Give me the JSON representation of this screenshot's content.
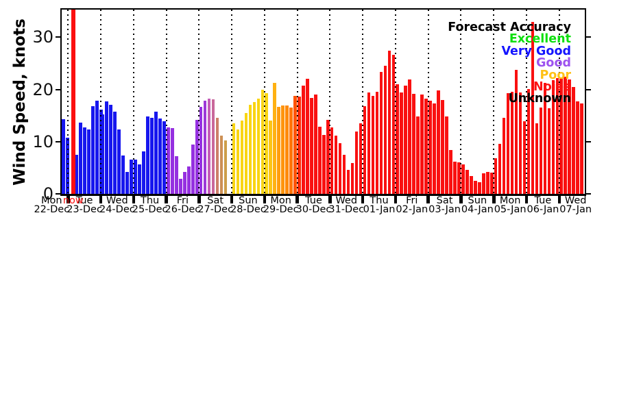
{
  "y_axis": {
    "label": "Wind Speed, knots",
    "tick_labels": [
      "0",
      "10",
      "20",
      "30"
    ],
    "tick_values": [
      0,
      10,
      20,
      30
    ],
    "ylim": [
      0,
      35.3
    ]
  },
  "now_marker": {
    "label": "now",
    "color": "#fb1010",
    "x": 14,
    "width": 5.6
  },
  "legend": {
    "title": "Forecast Accuracy",
    "title_color": "#000000",
    "items": [
      {
        "label": "Excellent",
        "color": "#0edf0e"
      },
      {
        "label": "Very Good",
        "color": "#1414ff"
      },
      {
        "label": "Good",
        "color": "#9d53ef"
      },
      {
        "label": "Poor",
        "color": "#ffc115"
      },
      {
        "label": "Noise",
        "color": "#fb1212"
      },
      {
        "label": "Unknown",
        "color": "#000000"
      }
    ]
  },
  "chart_data": {
    "type": "bar",
    "title": "",
    "ylabel": "Wind Speed, knots",
    "ylim": [
      0,
      35.3
    ],
    "grid": "vertical-dotted-at-midnight",
    "legend_position": "upper-right",
    "days": [
      {
        "name": "Mon",
        "date": "22-Dec",
        "dx": 2.5,
        "colors": "#1717ee",
        "values": [
          null,
          null,
          null,
          null,
          null,
          null,
          14.3,
          10.8
        ]
      },
      {
        "name": "Tue",
        "date": "23-Dec",
        "dx": 3.5,
        "colors": "#1717ee",
        "values": [
          null,
          7.5,
          13.6,
          12.7,
          12.3,
          16.8,
          17.8,
          16.2
        ]
      },
      {
        "name": "Wed",
        "date": "24-Dec",
        "colors": "#1717ee",
        "values": [
          15.2,
          17.7,
          17.0,
          15.8,
          12.3,
          7.4,
          4.2,
          6.6
        ]
      },
      {
        "name": "Thu",
        "date": "25-Dec",
        "colors": "#1717ee",
        "values": [
          6.5,
          5.7,
          8.2,
          14.8,
          14.6,
          15.7,
          14.4,
          13.9
        ]
      },
      {
        "name": "Fri",
        "date": "26-Dec",
        "colors": "#9530e0",
        "values": [
          12.7,
          12.6,
          7.2,
          2.9,
          4.2,
          5.3,
          9.5,
          14.2
        ]
      },
      {
        "name": "Sat",
        "date": "27-Dec",
        "colors": [
          "#9530e0",
          "#9d38d8",
          "#c45cb8",
          "#c9689b",
          "#cd7f69",
          "#cd9054",
          "#cd9e49",
          null
        ],
        "values": [
          16.7,
          17.9,
          18.3,
          18.1,
          14.6,
          11.2,
          10.3,
          null
        ]
      },
      {
        "name": "Sun",
        "date": "28-Dec",
        "colors": "#f9d513",
        "values": [
          13.5,
          12.4,
          14.1,
          15.5,
          17.0,
          17.6,
          18.2,
          20.0
        ]
      },
      {
        "name": "Mon",
        "date": "29-Dec",
        "colors": [
          "#f9d513",
          "#fcc414",
          "#ffb112",
          "#ff9d0e",
          "#ff940c",
          "#ff8a0a",
          "#ff7407",
          "#ff5202"
        ],
        "values": [
          19.3,
          14.1,
          21.2,
          16.7,
          16.9,
          16.9,
          16.5,
          18.8
        ]
      },
      {
        "name": "Tue",
        "date": "30-Dec",
        "colors": [
          "#fb2a04",
          "#f91010",
          "#f91010",
          "#f91010",
          "#f91010",
          "#f91010",
          "#f91010",
          "#f91010"
        ],
        "values": [
          18.6,
          20.8,
          22.0,
          18.4,
          19.0,
          12.8,
          11.3,
          14.2
        ]
      },
      {
        "name": "Wed",
        "date": "31-Dec",
        "colors": "#f91010",
        "values": [
          12.7,
          11.2,
          9.7,
          7.5,
          4.6,
          5.9,
          11.9,
          13.5
        ]
      },
      {
        "name": "Thu",
        "date": "01-Jan",
        "colors": "#f91010",
        "values": [
          16.8,
          19.4,
          18.8,
          19.6,
          23.4,
          24.5,
          27.4,
          26.7
        ]
      },
      {
        "name": "Fri",
        "date": "02-Jan",
        "colors": "#f91010",
        "values": [
          21.0,
          19.4,
          20.8,
          21.9,
          19.2,
          14.8,
          19.0,
          18.2
        ]
      },
      {
        "name": "Sat",
        "date": "03-Jan",
        "colors": "#f91010",
        "values": [
          17.9,
          17.3,
          19.8,
          18.0,
          14.8,
          8.4,
          6.2,
          6.0
        ]
      },
      {
        "name": "Sun",
        "date": "04-Jan",
        "colors": "#f91010",
        "values": [
          5.6,
          4.6,
          3.4,
          2.5,
          2.2,
          3.9,
          4.2,
          4.1
        ]
      },
      {
        "name": "Mon",
        "date": "05-Jan",
        "colors": "#f91010",
        "values": [
          6.8,
          9.6,
          14.6,
          19.3,
          19.5,
          23.8,
          19.4,
          13.9
        ]
      },
      {
        "name": "Tue",
        "date": "06-Jan",
        "colors": "#f91010",
        "values": [
          20.1,
          32.9,
          13.5,
          16.5,
          21.3,
          16.4,
          21.8,
          22.2
        ]
      },
      {
        "name": "Wed",
        "date": "07-Jan",
        "colors": "#f91010",
        "values": [
          22.3,
          22.5,
          21.9,
          20.5,
          17.7,
          17.3,
          null,
          null
        ]
      }
    ]
  }
}
